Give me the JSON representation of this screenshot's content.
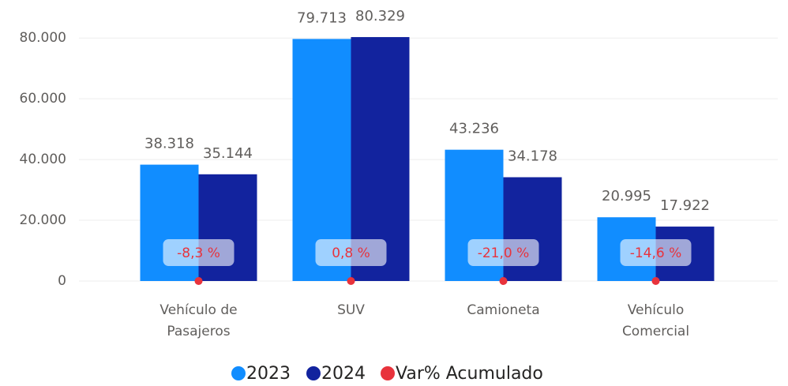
{
  "chart_data": {
    "type": "bar",
    "categories": [
      "Vehículo de Pasajeros",
      "SUV",
      "Camioneta",
      "Vehículo Comercial"
    ],
    "series": [
      {
        "name": "2023",
        "color": "#118DFF",
        "values": [
          38318,
          79713,
          43236,
          20995
        ],
        "value_labels": [
          "38.318",
          "79.713",
          "43.236",
          "20.995"
        ]
      },
      {
        "name": "2024",
        "color": "#12239E",
        "values": [
          35144,
          80329,
          34178,
          17922
        ],
        "value_labels": [
          "35.144",
          "80.329",
          "34.178",
          "17.922"
        ]
      },
      {
        "name": "Var% Acumulado",
        "color": "#E8333C",
        "type": "line",
        "values": [
          -0.083,
          0.008,
          -0.21,
          -0.146
        ],
        "value_labels": [
          "-8,3 %",
          "0,8 %",
          "-21,0 %",
          "-14,6 %"
        ]
      }
    ],
    "ylim": [
      0,
      85000
    ],
    "yticks": [
      0,
      {
        "value": 20000,
        "label": "20.000"
      },
      {
        "value": 40000,
        "label": "40.000"
      },
      {
        "value": 60000,
        "label": "60.000"
      },
      {
        "value": 80000,
        "label": "80.000"
      }
    ],
    "grid": true,
    "legend": "bottom"
  }
}
